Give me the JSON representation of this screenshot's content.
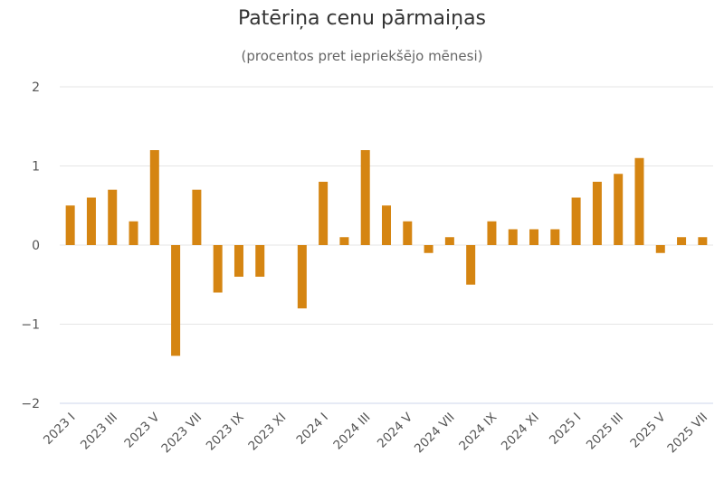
{
  "chart_data": {
    "type": "bar",
    "title": "Patēriņa cenu pārmaiņas",
    "subtitle": "(procentos pret iepriekšējo mēnesi)",
    "ylim": [
      -2,
      2
    ],
    "yticks": [
      2,
      1,
      0,
      -1,
      -2
    ],
    "ytick_labels": [
      "2",
      "1",
      "0",
      "−1",
      "−2"
    ],
    "grid": true,
    "legend": "none",
    "bar_color": "#D58512",
    "categories": [
      "2023 I",
      "2023 II",
      "2023 III",
      "2023 IV",
      "2023 V",
      "2023 VI",
      "2023 VII",
      "2023 VIII",
      "2023 IX",
      "2023 X",
      "2023 XI",
      "2023 XII",
      "2024 I",
      "2024 II",
      "2024 III",
      "2024 IV",
      "2024 V",
      "2024 VI",
      "2024 VII",
      "2024 VIII",
      "2024 IX",
      "2024 X",
      "2024 XI",
      "2024 XII",
      "2025 I",
      "2025 II",
      "2025 III",
      "2025 IV",
      "2025 V",
      "2025 VI",
      "2025 VII"
    ],
    "values": [
      0.5,
      0.6,
      0.7,
      0.3,
      1.2,
      -1.4,
      0.7,
      -0.6,
      -0.4,
      -0.4,
      0.0,
      -0.8,
      0.8,
      0.1,
      1.2,
      0.5,
      0.3,
      -0.1,
      0.1,
      -0.5,
      0.3,
      0.2,
      0.2,
      0.2,
      0.6,
      0.8,
      0.9,
      1.1,
      -0.1,
      0.1,
      0.1
    ],
    "shown_category_labels": [
      "2023 I",
      "2023 III",
      "2023 V",
      "2023 VII",
      "2023 IX",
      "2023 XI",
      "2024 I",
      "2024 III",
      "2024 V",
      "2024 VII",
      "2024 IX",
      "2024 XI",
      "2025 I",
      "2025 III",
      "2025 V",
      "2025 VII"
    ]
  }
}
